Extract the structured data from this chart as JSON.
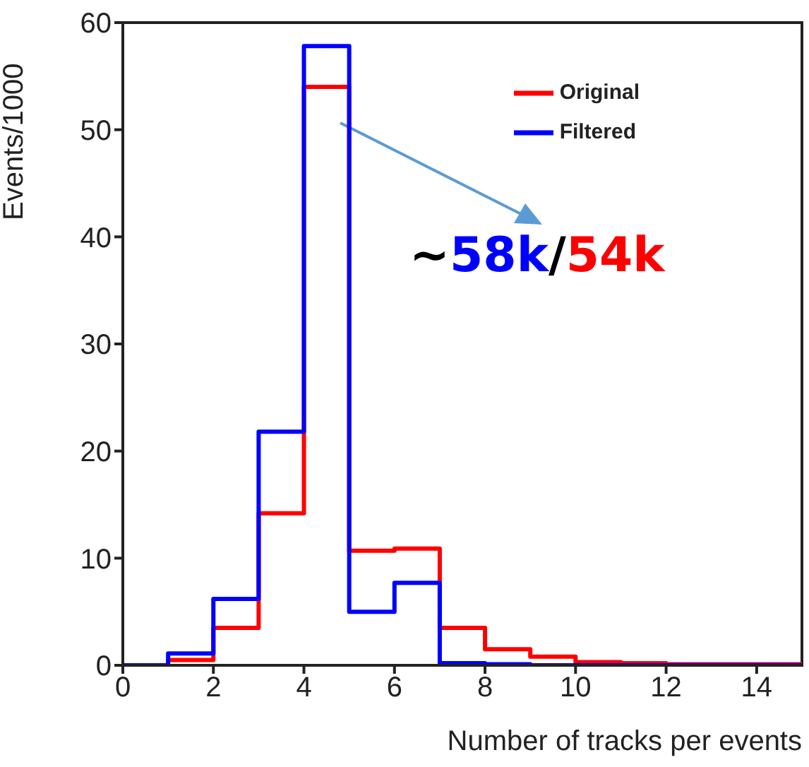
{
  "chart_data": {
    "type": "histogram",
    "xlabel": "Number of tracks per events",
    "ylabel": "Events/1000",
    "bins": [
      0,
      1,
      2,
      3,
      4,
      5,
      6,
      7,
      8,
      9,
      10,
      11,
      12,
      13,
      14,
      15
    ],
    "series": [
      {
        "name": "Original",
        "color": "#ff0000",
        "values": [
          0,
          0.5,
          3.5,
          14.2,
          54,
          10.7,
          10.9,
          3.5,
          1.5,
          0.8,
          0.3,
          0.2,
          0.1,
          0.1,
          0.1
        ]
      },
      {
        "name": "Filtered",
        "color": "#0000ff",
        "values": [
          0,
          1.1,
          6.2,
          21.8,
          57.8,
          5,
          7.7,
          0.2,
          0.1,
          0,
          0,
          0,
          0,
          0,
          0
        ]
      }
    ],
    "xlim": [
      0,
      15
    ],
    "xticks": [
      0,
      2,
      4,
      6,
      8,
      10,
      12,
      14
    ],
    "ylim": [
      0,
      60
    ],
    "yticks": [
      0,
      10,
      20,
      30,
      40,
      50,
      60
    ],
    "legend": "top right",
    "grid": false,
    "annotations": [
      "~58k/54k"
    ]
  }
}
